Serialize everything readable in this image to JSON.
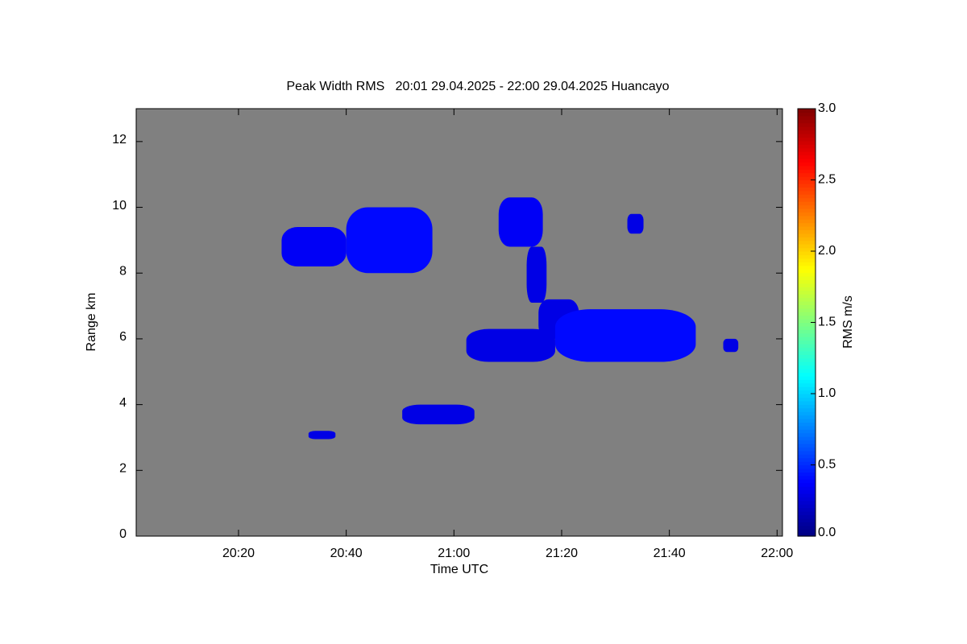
{
  "chart_data": {
    "type": "heatmap",
    "title": "Peak Width RMS   20:01 29.04.2025 - 22:00 29.04.2025 Huancayo",
    "x_label": "Time UTC",
    "y_label": "Range km",
    "colorbar_label": "RMS m/s",
    "colormap": "jet",
    "background": "#808080",
    "xlim": [
      1201,
      1321
    ],
    "xticks": [
      {
        "value": 1220,
        "label": "20:20"
      },
      {
        "value": 1240,
        "label": "20:40"
      },
      {
        "value": 1260,
        "label": "21:00"
      },
      {
        "value": 1280,
        "label": "21:20"
      },
      {
        "value": 1300,
        "label": "21:40"
      },
      {
        "value": 1320,
        "label": "22:00"
      }
    ],
    "ylim": [
      0,
      13
    ],
    "yticks": [
      0,
      2,
      4,
      6,
      8,
      10,
      12
    ],
    "clim": [
      0,
      3
    ],
    "cticks": [
      {
        "value": 0,
        "label": "0.0"
      },
      {
        "value": 0.5,
        "label": "0.5"
      },
      {
        "value": 1,
        "label": "1.0"
      },
      {
        "value": 1.5,
        "label": "1.5"
      },
      {
        "value": 2,
        "label": "2.0"
      },
      {
        "value": 2.5,
        "label": "2.5"
      },
      {
        "value": 3,
        "label": "3.0"
      }
    ],
    "cells": {
      "t0": [
        1228,
        1240,
        1268.3,
        1273.5,
        1275.7,
        1278.8,
        1262.3,
        1250.4,
        1292.2,
        1310,
        1233
      ],
      "t1": [
        1240,
        1256,
        1276.5,
        1277.2,
        1283.2,
        1304.9,
        1278.8,
        1263.8,
        1295.2,
        1312.8,
        1238
      ],
      "r0": [
        8.2,
        8.0,
        8.8,
        7.1,
        6.0,
        5.3,
        5.3,
        3.4,
        9.2,
        5.6,
        2.95
      ],
      "r1": [
        9.4,
        10.0,
        10.3,
        8.8,
        7.2,
        6.9,
        6.3,
        4.0,
        9.8,
        6.0,
        3.2
      ],
      "values": [
        0.35,
        0.4,
        0.35,
        0.3,
        0.3,
        0.4,
        0.3,
        0.3,
        0.3,
        0.3,
        0.3
      ]
    }
  }
}
